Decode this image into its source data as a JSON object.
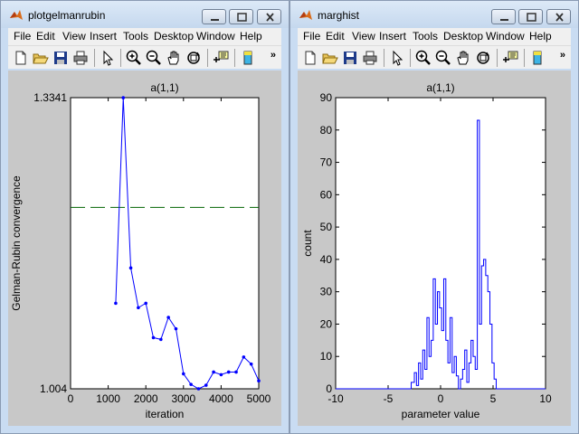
{
  "windows": [
    {
      "title": "plotgelmanrubin",
      "menu": [
        "File",
        "Edit",
        "View",
        "Insert",
        "Tools",
        "Desktop",
        "Window",
        "Help"
      ],
      "chart_data": {
        "type": "line",
        "title": "a(1,1)",
        "xlabel": "iteration",
        "ylabel": "Gelman-Rubin convergence",
        "xlim": [
          0,
          5000
        ],
        "xticks": [
          "0",
          "1000",
          "2000",
          "3000",
          "4000",
          "5000"
        ],
        "ylim": [
          1.004,
          1.3341
        ],
        "yticks": [
          "1.004",
          "1.3341"
        ],
        "series": [
          {
            "color": "#0000ff",
            "marker": "dot",
            "x": [
              1200,
              1400,
              1600,
              1800,
              2000,
              2200,
              2400,
              2600,
              2800,
              3000,
              3200,
              3400,
              3600,
              3800,
              4000,
              4200,
              4400,
              4600,
              4800,
              5000
            ],
            "y": [
              1.101,
              1.334,
              1.141,
              1.096,
              1.101,
              1.062,
              1.06,
              1.085,
              1.072,
              1.021,
              1.009,
              1.004,
              1.008,
              1.023,
              1.02,
              1.023,
              1.023,
              1.04,
              1.032,
              1.013
            ]
          }
        ],
        "reference_line": {
          "y": 1.2097,
          "color": "#006400",
          "style": "dashed"
        }
      }
    },
    {
      "title": "marghist",
      "menu": [
        "File",
        "Edit",
        "View",
        "Insert",
        "Tools",
        "Desktop",
        "Window",
        "Help"
      ],
      "chart_data": {
        "type": "line",
        "title": "a(1,1)",
        "xlabel": "parameter value",
        "ylabel": "count",
        "xlim": [
          -10,
          10
        ],
        "xticks": [
          "-10",
          "-5",
          "0",
          "5",
          "10"
        ],
        "ylim": [
          0,
          90
        ],
        "yticks": [
          "0",
          "10",
          "20",
          "30",
          "40",
          "50",
          "60",
          "70",
          "80",
          "90"
        ],
        "series": [
          {
            "color": "#0000ff",
            "style": "stairs",
            "x": [
              -10,
              -2.8,
              -2.5,
              -2.3,
              -2.1,
              -1.9,
              -1.7,
              -1.5,
              -1.3,
              -1.1,
              -0.9,
              -0.7,
              -0.5,
              -0.3,
              -0.1,
              0.1,
              0.3,
              0.5,
              0.7,
              0.9,
              1.1,
              1.3,
              1.5,
              1.7,
              1.9,
              2.1,
              2.3,
              2.5,
              2.7,
              2.9,
              3.1,
              3.3,
              3.5,
              3.7,
              3.9,
              4.1,
              4.3,
              4.5,
              4.7,
              4.9,
              5.1,
              5.3,
              10
            ],
            "y": [
              0,
              2,
              5,
              1,
              8,
              3,
              12,
              6,
              22,
              10,
              15,
              34,
              20,
              30,
              25,
              18,
              34,
              15,
              8,
              22,
              5,
              10,
              4,
              0,
              3,
              6,
              12,
              2,
              8,
              15,
              10,
              6,
              83,
              20,
              38,
              40,
              35,
              30,
              20,
              8,
              3,
              0,
              0
            ]
          }
        ]
      }
    }
  ]
}
